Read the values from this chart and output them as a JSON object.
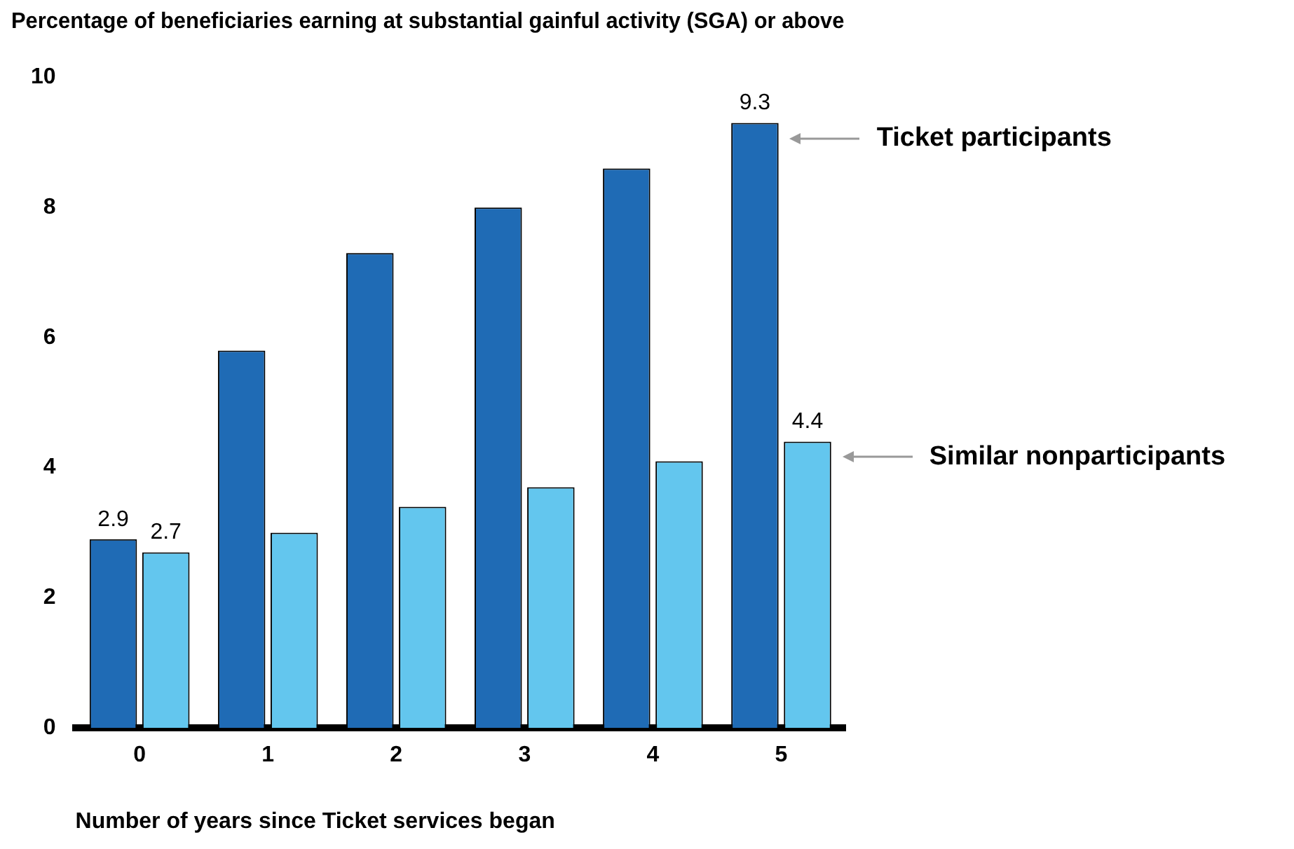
{
  "chart_data": {
    "type": "bar",
    "title": "Percentage of beneficiaries earning at substantial gainful activity (SGA) or above",
    "xlabel": "Number of years since Ticket services began",
    "categories": [
      "0",
      "1",
      "2",
      "3",
      "4",
      "5"
    ],
    "series": [
      {
        "name": "Ticket participants",
        "color": "#1f6bb5",
        "values": [
          2.9,
          5.8,
          7.3,
          8.0,
          8.6,
          9.3
        ],
        "value_labels": [
          "2.9",
          null,
          null,
          null,
          null,
          "9.3"
        ]
      },
      {
        "name": "Similar nonparticipants",
        "color": "#63c6ee",
        "values": [
          2.7,
          3.0,
          3.4,
          3.7,
          4.1,
          4.4
        ],
        "value_labels": [
          "2.7",
          null,
          null,
          null,
          null,
          "4.4"
        ]
      }
    ],
    "ylim": [
      0,
      10
    ],
    "yticks": [
      0,
      2,
      4,
      6,
      8,
      10
    ],
    "grid": false,
    "legend": false
  }
}
